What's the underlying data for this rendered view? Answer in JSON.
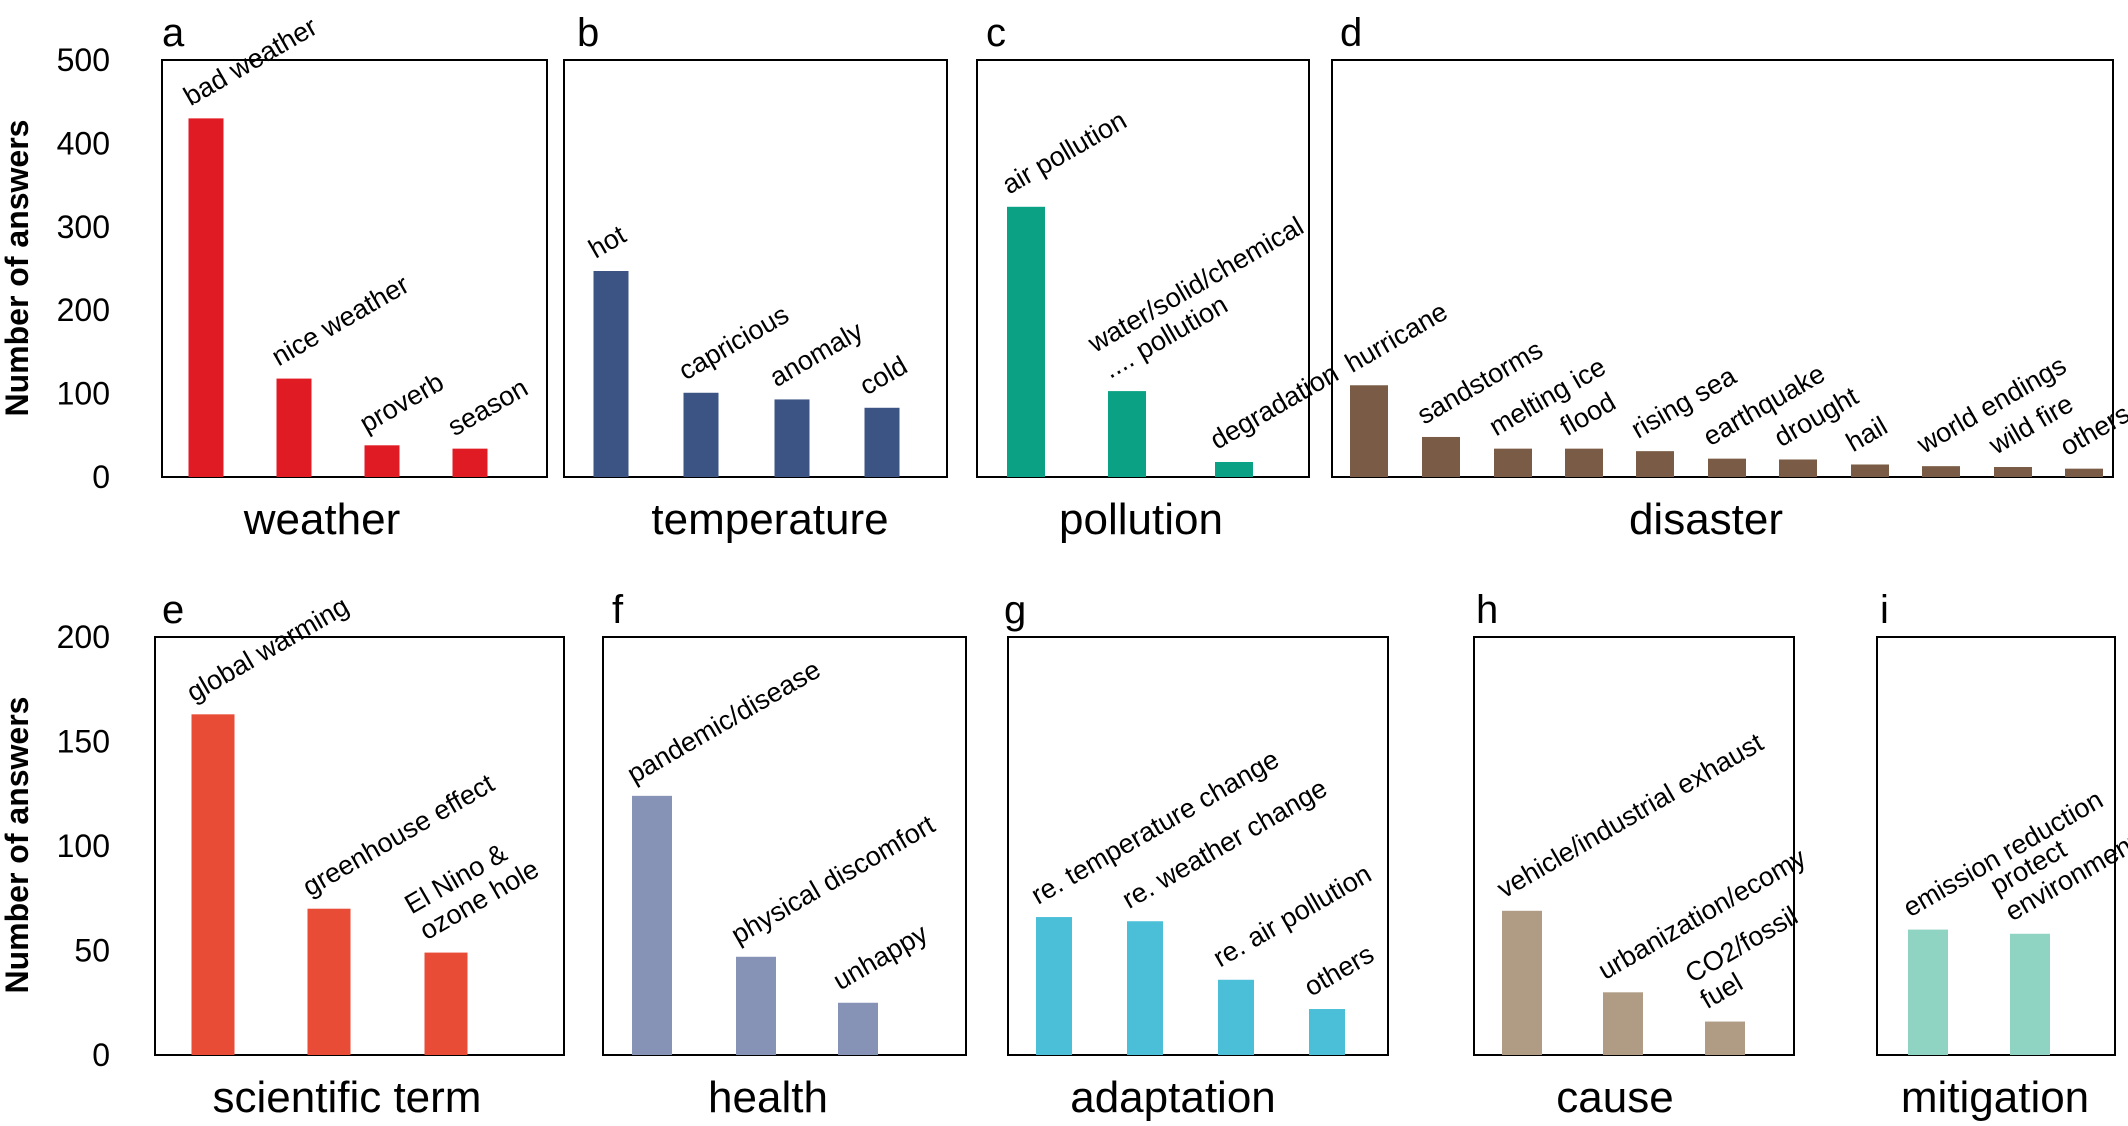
{
  "ylabel": "Number of answers",
  "top_ticks": [
    "500",
    "400",
    "300",
    "200",
    "100",
    "0"
  ],
  "bottom_ticks": [
    "200",
    "150",
    "100",
    "50",
    "0"
  ],
  "colors": {
    "weather": "#e01b24",
    "temperature": "#3b5484",
    "pollution": "#0aa185",
    "disaster": "#7a5c46",
    "scientific_term": "#e84b36",
    "health": "#8793b6",
    "adaptation": "#4bbfd8",
    "cause": "#b09c84",
    "mitigation": "#8fd3c2"
  },
  "chart_data": [
    {
      "panel": "a",
      "type": "bar",
      "xlabel": "weather",
      "ylim": [
        0,
        500
      ],
      "color_key": "weather",
      "categories": [
        "bad weather",
        "nice weather",
        "proverb",
        "season"
      ],
      "values": [
        430,
        118,
        38,
        34
      ]
    },
    {
      "panel": "b",
      "type": "bar",
      "xlabel": "temperature",
      "ylim": [
        0,
        500
      ],
      "color_key": "temperature",
      "categories": [
        "hot",
        "capricious",
        "anomaly",
        "cold"
      ],
      "values": [
        247,
        101,
        93,
        83
      ]
    },
    {
      "panel": "c",
      "type": "bar",
      "xlabel": "pollution",
      "ylim": [
        0,
        500
      ],
      "color_key": "pollution",
      "categories": [
        "air pollution",
        "water/solid/chemical .... pollution",
        "degradation"
      ],
      "category_lines": [
        [
          "air pollution"
        ],
        [
          "water/solid/chemical",
          "....  pollution"
        ],
        [
          "degradation"
        ]
      ],
      "values": [
        324,
        103,
        18
      ]
    },
    {
      "panel": "d",
      "type": "bar",
      "xlabel": "disaster",
      "ylim": [
        0,
        500
      ],
      "color_key": "disaster",
      "categories": [
        "hurricane",
        "sandstorms",
        "melting ice",
        "flood",
        "rising sea",
        "earthquake",
        "drought",
        "hail",
        "world endings",
        "wild fire",
        "others"
      ],
      "values": [
        110,
        48,
        34,
        34,
        31,
        22,
        21,
        15,
        13,
        12,
        10
      ]
    },
    {
      "panel": "e",
      "type": "bar",
      "xlabel": "scientific term",
      "ylim": [
        0,
        200
      ],
      "color_key": "scientific_term",
      "categories": [
        "global warming",
        "greenhouse effect",
        "El Nino & ozone hole"
      ],
      "category_lines": [
        [
          "global warming"
        ],
        [
          "greenhouse effect"
        ],
        [
          "El Nino &",
          "ozone hole"
        ]
      ],
      "values": [
        163,
        70,
        49
      ]
    },
    {
      "panel": "f",
      "type": "bar",
      "xlabel": "health",
      "ylim": [
        0,
        200
      ],
      "color_key": "health",
      "categories": [
        "pandemic/disease",
        "physical discomfort",
        "unhappy"
      ],
      "values": [
        124,
        47,
        25
      ]
    },
    {
      "panel": "g",
      "type": "bar",
      "xlabel": "adaptation",
      "ylim": [
        0,
        200
      ],
      "color_key": "adaptation",
      "categories": [
        "re. temperature change",
        "re. weather change",
        "re. air pollution",
        "others"
      ],
      "values": [
        66,
        64,
        36,
        22
      ]
    },
    {
      "panel": "h",
      "type": "bar",
      "xlabel": "cause",
      "ylim": [
        0,
        200
      ],
      "color_key": "cause",
      "categories": [
        "vehicle/industrial exhaust",
        "urbanization/ecomy",
        "CO2/fossil fuel"
      ],
      "category_lines": [
        [
          "vehicle/industrial exhaust"
        ],
        [
          "urbanization/ecomy"
        ],
        [
          "CO2/fossil",
          "fuel"
        ]
      ],
      "values": [
        69,
        30,
        16
      ]
    },
    {
      "panel": "i",
      "type": "bar",
      "xlabel": "mitigation",
      "ylim": [
        0,
        200
      ],
      "color_key": "mitigation",
      "categories": [
        "emission reduction",
        "protect environment"
      ],
      "category_lines": [
        [
          "emission reduction"
        ],
        [
          "protect",
          "environment"
        ]
      ],
      "values": [
        60,
        58
      ]
    }
  ]
}
